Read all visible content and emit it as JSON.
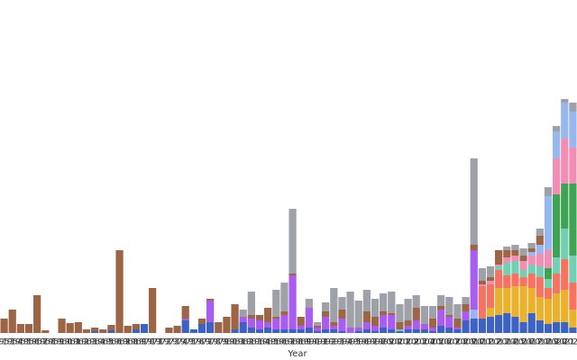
{
  "chart_data": {
    "type": "stacked-bar",
    "x_label": "Year",
    "categories": [
      "1953",
      "1954",
      "1955",
      "1956",
      "1957",
      "1958",
      "1959",
      "1960",
      "1961",
      "1962",
      "1963",
      "1964",
      "1965",
      "1966",
      "1967",
      "1968",
      "1969",
      "1970",
      "1971",
      "1972",
      "1973",
      "1974",
      "1975",
      "1976",
      "1977",
      "1978",
      "1979",
      "1980",
      "1981",
      "1982",
      "1983",
      "1984",
      "1985",
      "1986",
      "1987",
      "1988",
      "1989",
      "1990",
      "1991",
      "1992",
      "1993",
      "1994",
      "1995",
      "1996",
      "1997",
      "1998",
      "1999",
      "2000",
      "2001",
      "2002",
      "2003",
      "2004",
      "2005",
      "2006",
      "2007",
      "2008",
      "2009",
      "2010",
      "2011",
      "2012",
      "2013",
      "2014",
      "2015",
      "2016",
      "2017",
      "2018",
      "2019",
      "2020",
      "2021",
      "2022"
    ],
    "ylim": [
      0,
      300
    ],
    "series": [
      {
        "color": "#3c63c4",
        "values": [
          0,
          0,
          0,
          0,
          0,
          0,
          0,
          0,
          0,
          0,
          0,
          2,
          0,
          3,
          0,
          0,
          4,
          10,
          0,
          0,
          0,
          0,
          14,
          4,
          10,
          12,
          0,
          0,
          4,
          12,
          6,
          4,
          6,
          4,
          4,
          4,
          4,
          6,
          2,
          4,
          4,
          2,
          0,
          2,
          4,
          2,
          6,
          4,
          2,
          4,
          4,
          4,
          2,
          8,
          6,
          4,
          14,
          16,
          16,
          18,
          20,
          22,
          18,
          12,
          22,
          14,
          10,
          12,
          12,
          6
        ]
      },
      {
        "color": "#e9b12c",
        "values": [
          0,
          0,
          0,
          0,
          0,
          0,
          0,
          0,
          0,
          0,
          0,
          0,
          0,
          0,
          0,
          0,
          0,
          0,
          0,
          0,
          0,
          0,
          0,
          0,
          0,
          0,
          0,
          0,
          0,
          0,
          0,
          0,
          0,
          0,
          0,
          0,
          0,
          0,
          0,
          0,
          0,
          0,
          0,
          0,
          0,
          0,
          0,
          0,
          0,
          0,
          0,
          0,
          0,
          0,
          0,
          0,
          0,
          0,
          0,
          10,
          30,
          28,
          34,
          40,
          28,
          26,
          28,
          32,
          36,
          20
        ]
      },
      {
        "color": "#f8735f",
        "values": [
          0,
          0,
          0,
          0,
          0,
          0,
          0,
          0,
          0,
          0,
          0,
          0,
          0,
          0,
          0,
          0,
          0,
          0,
          0,
          0,
          0,
          0,
          0,
          0,
          0,
          0,
          0,
          0,
          0,
          0,
          0,
          0,
          0,
          0,
          0,
          0,
          0,
          0,
          0,
          0,
          0,
          0,
          0,
          0,
          0,
          0,
          0,
          0,
          0,
          0,
          0,
          0,
          0,
          0,
          0,
          0,
          0,
          0,
          36,
          26,
          20,
          14,
          14,
          10,
          16,
          22,
          12,
          22,
          34,
          30
        ]
      },
      {
        "color": "#72cfb3",
        "values": [
          0,
          0,
          0,
          0,
          0,
          0,
          0,
          0,
          0,
          0,
          0,
          0,
          0,
          0,
          0,
          0,
          0,
          0,
          0,
          0,
          0,
          0,
          0,
          0,
          0,
          0,
          0,
          0,
          0,
          0,
          0,
          0,
          0,
          0,
          0,
          0,
          0,
          0,
          0,
          0,
          0,
          0,
          0,
          0,
          0,
          0,
          0,
          0,
          2,
          0,
          0,
          0,
          0,
          0,
          0,
          0,
          0,
          0,
          0,
          0,
          4,
          14,
          14,
          8,
          10,
          12,
          10,
          18,
          34,
          30
        ]
      },
      {
        "color": "#3ea353",
        "values": [
          0,
          0,
          0,
          0,
          0,
          0,
          0,
          0,
          0,
          0,
          0,
          0,
          0,
          0,
          0,
          0,
          0,
          0,
          0,
          0,
          0,
          0,
          0,
          0,
          0,
          0,
          0,
          0,
          0,
          0,
          0,
          0,
          0,
          0,
          0,
          0,
          0,
          0,
          0,
          0,
          0,
          0,
          0,
          0,
          0,
          0,
          0,
          0,
          0,
          0,
          0,
          0,
          0,
          0,
          0,
          0,
          0,
          0,
          0,
          0,
          0,
          0,
          0,
          0,
          0,
          0,
          12,
          70,
          50,
          80
        ]
      },
      {
        "color": "#f38db3",
        "values": [
          0,
          0,
          0,
          0,
          0,
          0,
          0,
          0,
          0,
          0,
          0,
          0,
          0,
          0,
          0,
          0,
          0,
          0,
          0,
          0,
          0,
          0,
          0,
          0,
          0,
          0,
          0,
          0,
          0,
          0,
          0,
          0,
          0,
          0,
          0,
          0,
          0,
          0,
          0,
          0,
          0,
          0,
          0,
          0,
          0,
          0,
          0,
          0,
          0,
          0,
          0,
          0,
          0,
          0,
          0,
          0,
          0,
          0,
          2,
          4,
          2,
          6,
          6,
          10,
          10,
          14,
          20,
          40,
          50,
          40
        ]
      },
      {
        "color": "#96b7f0",
        "values": [
          0,
          0,
          0,
          0,
          0,
          0,
          0,
          0,
          0,
          0,
          0,
          0,
          0,
          0,
          0,
          0,
          0,
          0,
          0,
          0,
          0,
          0,
          0,
          0,
          0,
          0,
          0,
          0,
          0,
          0,
          0,
          0,
          0,
          0,
          0,
          0,
          0,
          0,
          0,
          0,
          0,
          0,
          0,
          0,
          0,
          0,
          0,
          0,
          0,
          0,
          0,
          0,
          0,
          0,
          0,
          0,
          0,
          10,
          0,
          0,
          0,
          0,
          0,
          0,
          4,
          10,
          60,
          30,
          40,
          40
        ]
      },
      {
        "color": "#a95cf2",
        "values": [
          0,
          0,
          0,
          0,
          0,
          0,
          0,
          0,
          0,
          0,
          0,
          0,
          0,
          0,
          0,
          0,
          0,
          0,
          0,
          0,
          0,
          0,
          2,
          0,
          0,
          24,
          0,
          0,
          0,
          6,
          10,
          10,
          6,
          12,
          16,
          60,
          4,
          22,
          4,
          14,
          4,
          14,
          6,
          4,
          8,
          6,
          14,
          16,
          0,
          4,
          10,
          6,
          4,
          18,
          12,
          2,
          10,
          66,
          0,
          0,
          0,
          0,
          0,
          0,
          0,
          0,
          0,
          0,
          0,
          0
        ]
      },
      {
        "color": "#9c6644",
        "values": [
          16,
          26,
          10,
          10,
          42,
          3,
          0,
          16,
          11,
          12,
          4,
          4,
          4,
          6,
          92,
          8,
          6,
          0,
          50,
          0,
          6,
          8,
          14,
          0,
          6,
          2,
          12,
          18,
          28,
          0,
          4,
          6,
          16,
          2,
          4,
          2,
          10,
          0,
          2,
          6,
          4,
          10,
          0,
          0,
          12,
          10,
          4,
          2,
          8,
          6,
          14,
          0,
          10,
          4,
          2,
          10,
          8,
          6,
          4,
          4,
          16,
          8,
          6,
          6,
          4,
          10,
          0,
          0,
          0,
          0
        ]
      },
      {
        "color": "#9ea1a8",
        "values": [
          0,
          0,
          0,
          0,
          0,
          0,
          0,
          0,
          0,
          0,
          0,
          0,
          0,
          0,
          0,
          0,
          0,
          0,
          0,
          0,
          0,
          0,
          0,
          0,
          0,
          0,
          0,
          0,
          0,
          8,
          26,
          0,
          0,
          30,
          32,
          72,
          0,
          10,
          4,
          10,
          38,
          14,
          40,
          30,
          24,
          20,
          20,
          24,
          20,
          24,
          14,
          20,
          14,
          12,
          20,
          16,
          8,
          96,
          14,
          12,
          0,
          4,
          6,
          8,
          6,
          8,
          10,
          6,
          4,
          10
        ]
      }
    ]
  }
}
